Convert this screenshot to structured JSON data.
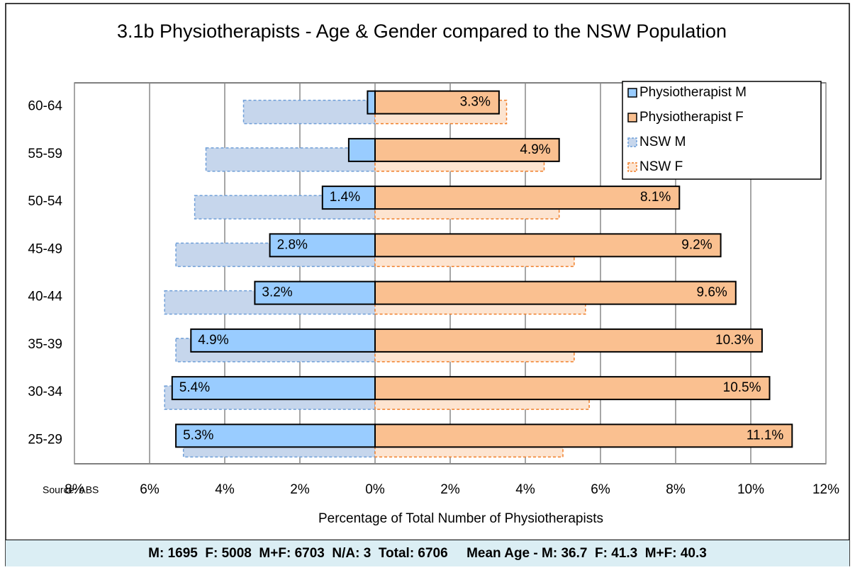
{
  "chart_data": {
    "type": "bar",
    "orientation": "horizontal",
    "title": "3.1b Physiotherapists - Age & Gender compared to the NSW Population",
    "x_label": "Percentage of Total Number of Physiotherapists",
    "source": "Source: ABS",
    "footer": "M: 1695  F: 5008  M+F: 6703  N/A: 3  Total: 6706     Mean Age - M: 36.7  F: 41.3  M+F: 40.3",
    "categories": [
      "60-64",
      "55-59",
      "50-54",
      "45-49",
      "40-44",
      "35-39",
      "30-34",
      "25-29"
    ],
    "series": [
      {
        "name": "Physiotherapist M",
        "color": "#99ccff",
        "border": "solid",
        "values": [
          -0.2,
          -0.7,
          -1.4,
          -2.8,
          -3.2,
          -4.9,
          -5.4,
          -5.3
        ],
        "value_labels": [
          null,
          null,
          "1.4%",
          "2.8%",
          "3.2%",
          "4.9%",
          "5.4%",
          "5.3%"
        ]
      },
      {
        "name": "Physiotherapist F",
        "color": "#fac090",
        "border": "solid",
        "values": [
          3.3,
          4.9,
          8.1,
          9.2,
          9.6,
          10.3,
          10.5,
          11.1
        ],
        "value_labels": [
          "3.3%",
          "4.9%",
          "8.1%",
          "9.2%",
          "9.6%",
          "10.3%",
          "10.5%",
          "11.1%"
        ]
      },
      {
        "name": "NSW M",
        "color": "#c6d6ec",
        "border": "dashed",
        "values": [
          -3.5,
          -4.5,
          -4.8,
          -5.3,
          -5.6,
          -5.3,
          -5.6,
          -5.1
        ]
      },
      {
        "name": "NSW F",
        "color": "#fde4d0",
        "border": "dashed",
        "values": [
          3.5,
          4.5,
          4.9,
          5.3,
          5.6,
          5.3,
          5.7,
          5.0
        ]
      }
    ],
    "xlim": [
      -8,
      12
    ],
    "xticks": [
      {
        "value": -8,
        "label": "8%"
      },
      {
        "value": -6,
        "label": "6%"
      },
      {
        "value": -4,
        "label": "4%"
      },
      {
        "value": -2,
        "label": "2%"
      },
      {
        "value": 0,
        "label": "0%"
      },
      {
        "value": 2,
        "label": "2%"
      },
      {
        "value": 4,
        "label": "4%"
      },
      {
        "value": 6,
        "label": "6%"
      },
      {
        "value": 8,
        "label": "8%"
      },
      {
        "value": 10,
        "label": "10%"
      },
      {
        "value": 12,
        "label": "12%"
      }
    ],
    "grid": true,
    "legend": "upper right"
  }
}
